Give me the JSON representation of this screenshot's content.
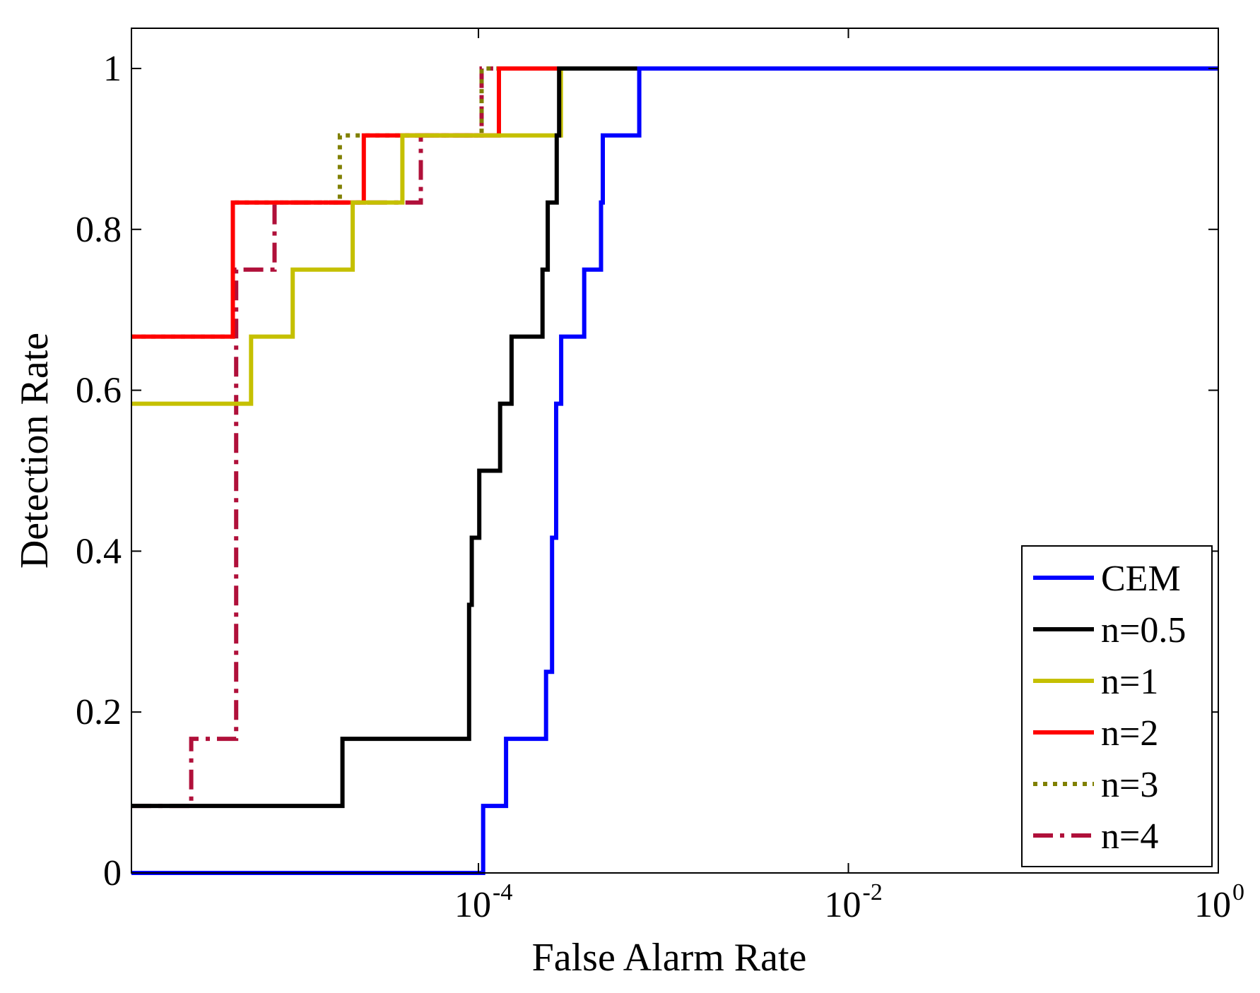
{
  "chart_data": {
    "type": "line",
    "step": true,
    "title": "",
    "xlabel": "False Alarm Rate",
    "ylabel": "Detection Rate",
    "xscale": "log",
    "xlim": [
      1.33e-06,
      1
    ],
    "ylim": [
      0,
      1.05
    ],
    "xticks": [
      {
        "value": 0.0001,
        "base": "10",
        "exp": "-4"
      },
      {
        "value": 0.01,
        "base": "10",
        "exp": "-2"
      },
      {
        "value": 1,
        "base": "10",
        "exp": "0"
      }
    ],
    "yticks": [
      {
        "value": 0,
        "label": "0"
      },
      {
        "value": 0.2,
        "label": "0.2"
      },
      {
        "value": 0.4,
        "label": "0.4"
      },
      {
        "value": 0.6,
        "label": "0.6"
      },
      {
        "value": 0.8,
        "label": "0.8"
      },
      {
        "value": 1,
        "label": "1"
      }
    ],
    "legend_position": "bottom-right",
    "series": [
      {
        "name": "CEM",
        "color": "#0000ff",
        "dash": "solid",
        "x": [
          1.33e-06,
          0.000106,
          0.000141,
          0.000232,
          0.00025,
          0.000263,
          0.00028,
          0.000373,
          0.00046,
          0.00047,
          0.00074,
          0.0009,
          1
        ],
        "y": [
          0,
          0.0833,
          0.1667,
          0.25,
          0.4167,
          0.5833,
          0.6667,
          0.75,
          0.8333,
          0.9167,
          1,
          1,
          1
        ]
      },
      {
        "name": "n=0.5",
        "color": "#000000",
        "dash": "solid",
        "x": [
          1.33e-06,
          1.84e-05,
          8.9e-05,
          9.2e-05,
          0.000101,
          0.000131,
          0.000151,
          0.000222,
          0.000237,
          0.000265,
          0.000273,
          0.00036,
          0.00045,
          1
        ],
        "y": [
          0.0833,
          0.1667,
          0.3333,
          0.4167,
          0.5,
          0.5833,
          0.6667,
          0.75,
          0.8333,
          0.9167,
          1,
          1,
          1,
          1
        ]
      },
      {
        "name": "n=1",
        "color": "#c5c000",
        "dash": "solid",
        "x": [
          1.33e-06,
          5.9e-06,
          9.9e-06,
          2.09e-05,
          3.88e-05,
          0.000279,
          0.000392,
          1
        ],
        "y": [
          0.5833,
          0.6667,
          0.75,
          0.8333,
          0.9167,
          1,
          1,
          1
        ]
      },
      {
        "name": "n=2",
        "color": "#ff0000",
        "dash": "solid",
        "x": [
          1.33e-06,
          4.7e-06,
          2.4e-05,
          0.000129,
          1
        ],
        "y": [
          0.6667,
          0.8333,
          0.9167,
          1,
          1
        ]
      },
      {
        "name": "n=3",
        "color": "#808000",
        "dash": "dot",
        "x": [
          1.33e-06,
          4.7e-06,
          1.78e-05,
          0.000104,
          1
        ],
        "y": [
          0.6667,
          0.8333,
          0.9167,
          1,
          1
        ]
      },
      {
        "name": "n=4",
        "color": "#b0103a",
        "dash": "dashdot",
        "x": [
          1.33e-06,
          2.8e-06,
          4.9e-06,
          7.9e-06,
          4.88e-05,
          0.000104,
          1
        ],
        "y": [
          0.0833,
          0.1667,
          0.75,
          0.8333,
          0.9167,
          1,
          1
        ]
      }
    ]
  }
}
